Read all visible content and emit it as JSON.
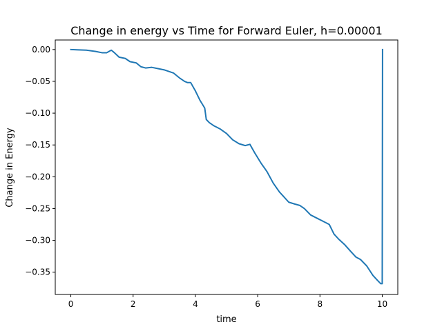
{
  "chart_data": {
    "type": "line",
    "title": "Change in energy vs Time for Forward Euler, h=0.00001",
    "xlabel": "time",
    "ylabel": "Change in Energy",
    "xlim": [
      -0.5,
      10.5
    ],
    "ylim": [
      -0.385,
      0.015
    ],
    "xticks": [
      0,
      2,
      4,
      6,
      8,
      10
    ],
    "xtick_labels": [
      "0",
      "2",
      "4",
      "6",
      "8",
      "10"
    ],
    "yticks": [
      0.0,
      -0.05,
      -0.1,
      -0.15,
      -0.2,
      -0.25,
      -0.3,
      -0.35
    ],
    "ytick_labels": [
      "0.00",
      "−0.05",
      "−0.10",
      "−0.15",
      "−0.20",
      "−0.25",
      "−0.30",
      "−0.35"
    ],
    "grid": false,
    "legend": "none",
    "series": [
      {
        "color": "#1f77b4",
        "x": [
          0,
          0.2,
          0.5,
          0.8,
          1.0,
          1.15,
          1.3,
          1.4,
          1.55,
          1.75,
          1.9,
          2.1,
          2.25,
          2.4,
          2.6,
          2.8,
          3.0,
          3.3,
          3.5,
          3.65,
          3.75,
          3.85,
          4.0,
          4.15,
          4.3,
          4.35,
          4.45,
          4.6,
          4.8,
          5.0,
          5.2,
          5.4,
          5.6,
          5.75,
          5.9,
          6.1,
          6.3,
          6.5,
          6.7,
          7.0,
          7.2,
          7.35,
          7.5,
          7.7,
          7.9,
          8.1,
          8.3,
          8.45,
          8.6,
          8.8,
          9.0,
          9.15,
          9.3,
          9.5,
          9.7,
          9.85,
          9.95,
          10.0,
          10.01
        ],
        "y": [
          0.0,
          -0.0005,
          -0.001,
          -0.003,
          -0.005,
          -0.005,
          -0.001,
          -0.005,
          -0.012,
          -0.014,
          -0.019,
          -0.021,
          -0.027,
          -0.029,
          -0.028,
          -0.03,
          -0.032,
          -0.037,
          -0.045,
          -0.05,
          -0.052,
          -0.052,
          -0.065,
          -0.08,
          -0.092,
          -0.11,
          -0.115,
          -0.12,
          -0.125,
          -0.132,
          -0.142,
          -0.148,
          -0.151,
          -0.149,
          -0.162,
          -0.178,
          -0.192,
          -0.21,
          -0.224,
          -0.24,
          -0.243,
          -0.245,
          -0.25,
          -0.26,
          -0.265,
          -0.27,
          -0.275,
          -0.29,
          -0.298,
          -0.307,
          -0.318,
          -0.326,
          -0.33,
          -0.34,
          -0.355,
          -0.363,
          -0.368,
          -0.368,
          0.0
        ]
      }
    ]
  }
}
